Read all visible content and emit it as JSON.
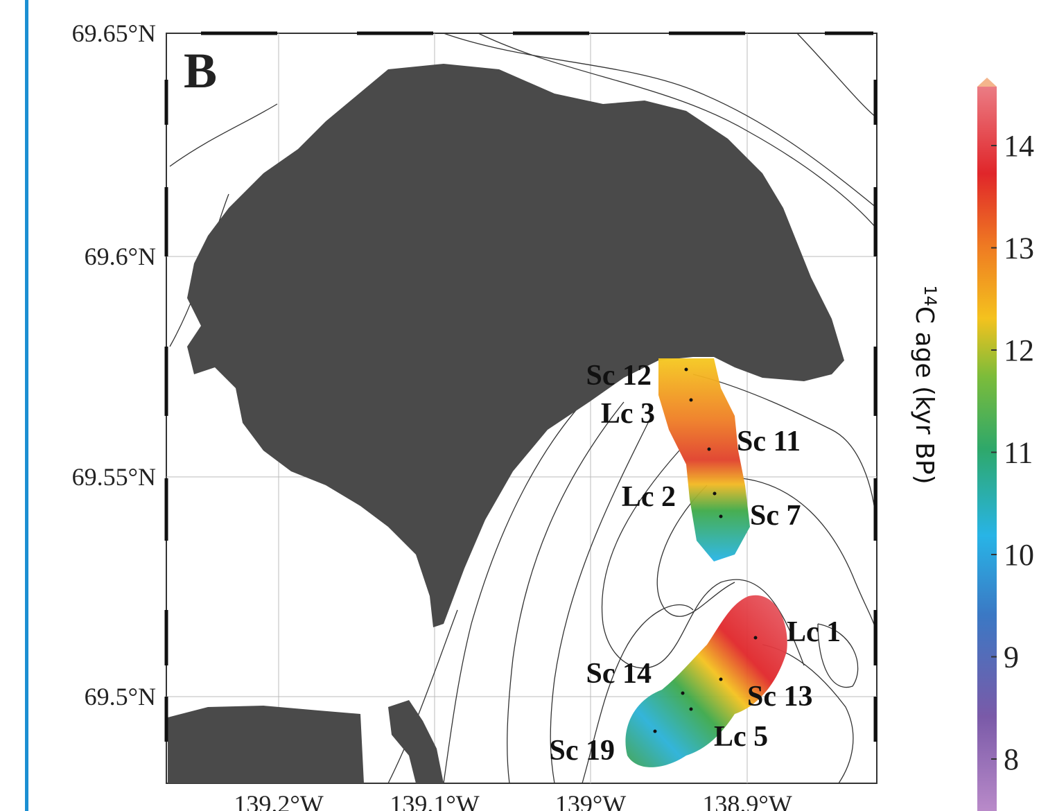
{
  "panel_label": "B",
  "latitude_labels": [
    "69.65°N",
    "69.6°N",
    "69.55°N",
    "69.5°N"
  ],
  "longitude_labels": [
    "139.2°W",
    "139.1°W",
    "139°W",
    "138.9°W"
  ],
  "stations": [
    "Sc 12",
    "Lc 3",
    "Sc 11",
    "Lc 2",
    "Sc 7",
    "Lc 1",
    "Sc 14",
    "Sc 13",
    "Lc 5",
    "Sc 19"
  ],
  "colorbar": {
    "label_superscript": "14",
    "label": "C age (kyr BP)",
    "ticks": [
      14,
      13,
      12,
      11,
      10,
      9,
      8
    ]
  }
}
